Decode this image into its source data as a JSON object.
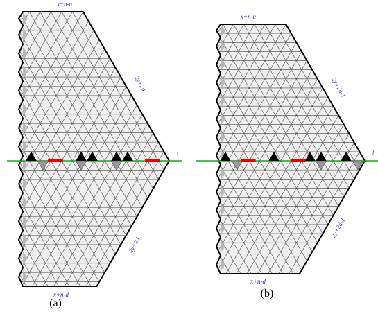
{
  "panels": [
    {
      "top": "x+n-u",
      "upper_side": "2y+2u",
      "line": "l",
      "lower_side": "2y+2d",
      "bottom": "x+n-d",
      "caption": "(a)"
    },
    {
      "top": "x+n-u",
      "upper_side": "2y+2u-1",
      "line": "l",
      "lower_side": "2y+2d-1",
      "bottom": "x+n-d",
      "caption": "(b)"
    }
  ]
}
